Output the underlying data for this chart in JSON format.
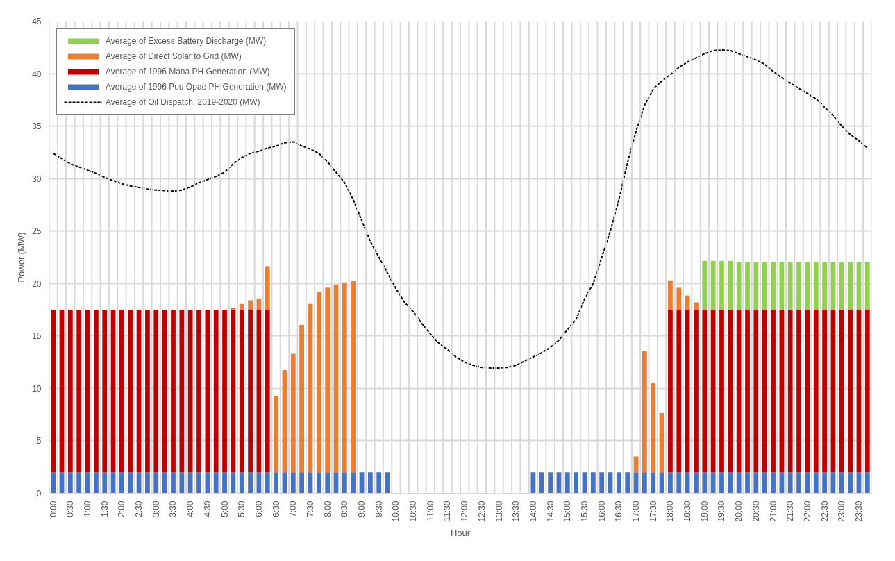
{
  "chart_data": {
    "type": "bar",
    "stacked": true,
    "xlabel": "Hour",
    "ylabel": "Power (MW)",
    "categories": [
      "0:00",
      null,
      "0:30",
      null,
      "1:00",
      null,
      "1:30",
      null,
      "2:00",
      null,
      "2:30",
      null,
      "3:00",
      null,
      "3:30",
      null,
      "4:00",
      null,
      "4:30",
      null,
      "5:00",
      null,
      "5:30",
      null,
      "6:00",
      null,
      "6:30",
      null,
      "7:00",
      null,
      "7:30",
      null,
      "8:00",
      null,
      "8:30",
      null,
      "9:00",
      null,
      "9:30",
      null,
      "10:00",
      null,
      "10:30",
      null,
      "11:00",
      null,
      "11:30",
      null,
      "12:00",
      null,
      "12:30",
      null,
      "13:00",
      null,
      "13:30",
      null,
      "14:00",
      null,
      "14:30",
      null,
      "15:00",
      null,
      "15:30",
      null,
      "16:00",
      null,
      "16:30",
      null,
      "17:00",
      null,
      "17:30",
      null,
      "18:00",
      null,
      "18:30",
      null,
      "19:00",
      null,
      "19:30",
      null,
      "20:00",
      null,
      "20:30",
      null,
      "21:00",
      null,
      "21:30",
      null,
      "22:00",
      null,
      "22:30",
      null,
      "23:00",
      null,
      "23:30",
      null
    ],
    "series": [
      {
        "name": "Average of 1996 Puu Opae PH Generation (MW)",
        "color": "#4472c4",
        "values": [
          2,
          2,
          2,
          2,
          2,
          2,
          2,
          2,
          2,
          2,
          2,
          2,
          2,
          2,
          2,
          2,
          2,
          2,
          2,
          2,
          2,
          2,
          2,
          2,
          2,
          2,
          2,
          2,
          2,
          2,
          2,
          2,
          2,
          2,
          2,
          2,
          2,
          2,
          2,
          2,
          null,
          null,
          null,
          null,
          null,
          null,
          null,
          null,
          null,
          null,
          null,
          null,
          null,
          null,
          null,
          null,
          2,
          2,
          2,
          2,
          2,
          2,
          2,
          2,
          2,
          2,
          2,
          2,
          2,
          2,
          2,
          2,
          2,
          2,
          2,
          2,
          2,
          2,
          2,
          2,
          2,
          2,
          2,
          2,
          2,
          2,
          2,
          2,
          2,
          2,
          2,
          2,
          2,
          2,
          2,
          2
        ]
      },
      {
        "name": "Average of 1996 Mana PH Generation (MW)",
        "color": "#c00000",
        "values": [
          15.5,
          15.5,
          15.5,
          15.5,
          15.5,
          15.5,
          15.5,
          15.5,
          15.5,
          15.5,
          15.5,
          15.5,
          15.5,
          15.5,
          15.5,
          15.5,
          15.5,
          15.5,
          15.5,
          15.5,
          15.5,
          15.5,
          15.5,
          15.5,
          15.5,
          15.5,
          null,
          null,
          null,
          null,
          null,
          null,
          null,
          null,
          null,
          null,
          null,
          null,
          null,
          null,
          null,
          null,
          null,
          null,
          null,
          null,
          null,
          null,
          null,
          null,
          null,
          null,
          null,
          null,
          null,
          null,
          null,
          null,
          null,
          null,
          null,
          null,
          null,
          null,
          null,
          null,
          null,
          null,
          null,
          null,
          null,
          null,
          15.5,
          15.5,
          15.5,
          15.5,
          15.5,
          15.5,
          15.5,
          15.5,
          15.5,
          15.5,
          15.5,
          15.5,
          15.5,
          15.5,
          15.5,
          15.5,
          15.5,
          15.5,
          15.5,
          15.5,
          15.5,
          15.5,
          15.5,
          15.5
        ]
      },
      {
        "name": "Average of Direct Solar to Grid (MW)",
        "color": "#ed7d31",
        "values": [
          null,
          null,
          null,
          null,
          null,
          null,
          null,
          null,
          null,
          null,
          null,
          null,
          null,
          null,
          null,
          null,
          null,
          null,
          null,
          null,
          null,
          0.2,
          0.55,
          0.9,
          1.05,
          4.15,
          7.3,
          9.75,
          11.3,
          14.05,
          16.05,
          17.2,
          17.6,
          17.9,
          18.1,
          18.25,
          null,
          null,
          null,
          null,
          null,
          null,
          null,
          null,
          null,
          null,
          null,
          null,
          null,
          null,
          null,
          null,
          null,
          null,
          null,
          null,
          null,
          null,
          null,
          null,
          null,
          null,
          null,
          null,
          null,
          null,
          null,
          null,
          1.5,
          11.55,
          8.5,
          5.65,
          2.8,
          2.1,
          1.35,
          0.7,
          null,
          null,
          null,
          null,
          null,
          null,
          null,
          null,
          null,
          null,
          null,
          null,
          null,
          null,
          null,
          null,
          null,
          null,
          null,
          null
        ]
      },
      {
        "name": "Average of Excess Battery Discharge (MW)",
        "color": "#92d050",
        "values": [
          null,
          null,
          null,
          null,
          null,
          null,
          null,
          null,
          null,
          null,
          null,
          null,
          null,
          null,
          null,
          null,
          null,
          null,
          null,
          null,
          null,
          null,
          null,
          null,
          null,
          null,
          null,
          null,
          null,
          null,
          null,
          null,
          null,
          null,
          null,
          null,
          null,
          null,
          null,
          null,
          null,
          null,
          null,
          null,
          null,
          null,
          null,
          null,
          null,
          null,
          null,
          null,
          null,
          null,
          null,
          null,
          null,
          null,
          null,
          null,
          null,
          null,
          null,
          null,
          null,
          null,
          null,
          null,
          null,
          null,
          null,
          null,
          null,
          null,
          null,
          null,
          4.65,
          4.65,
          4.65,
          4.65,
          4.5,
          4.5,
          4.5,
          4.5,
          4.5,
          4.5,
          4.5,
          4.5,
          4.5,
          4.5,
          4.5,
          4.5,
          4.5,
          4.5,
          4.5,
          4.5
        ]
      },
      {
        "name": "Average of Oil Dispatch, 2019-2020 (MW)",
        "type": "line",
        "line_style": "dashed",
        "color": "#000000",
        "values": [
          32.4,
          31.9,
          31.4,
          31.1,
          30.8,
          30.5,
          30.1,
          29.8,
          29.5,
          29.3,
          29.15,
          29.0,
          28.9,
          28.85,
          28.8,
          28.9,
          29.2,
          29.6,
          29.9,
          30.2,
          30.6,
          31.4,
          32.0,
          32.4,
          32.6,
          32.9,
          33.1,
          33.4,
          33.5,
          33.1,
          32.8,
          32.4,
          31.6,
          30.6,
          29.6,
          28.0,
          26.0,
          24.0,
          22.5,
          21.0,
          19.5,
          18.2,
          17.3,
          16.2,
          15.2,
          14.3,
          13.7,
          13.0,
          12.5,
          12.2,
          12.0,
          11.95,
          11.95,
          12.0,
          12.2,
          12.6,
          13.0,
          13.4,
          13.9,
          14.6,
          15.6,
          16.6,
          18.5,
          20.0,
          22.5,
          25.0,
          28.0,
          31.5,
          34.5,
          37.0,
          38.5,
          39.3,
          39.9,
          40.6,
          41.1,
          41.5,
          41.9,
          42.2,
          42.25,
          42.2,
          41.9,
          41.6,
          41.3,
          40.9,
          40.2,
          39.6,
          39.1,
          38.6,
          38.1,
          37.6,
          36.8,
          36.0,
          35.0,
          34.2,
          33.6,
          32.9
        ]
      }
    ],
    "ylim": [
      0,
      45
    ],
    "yticks": [
      0,
      5,
      10,
      15,
      20,
      25,
      30,
      35,
      40,
      45
    ],
    "grid": true,
    "legend": "top left",
    "marker": "none"
  }
}
